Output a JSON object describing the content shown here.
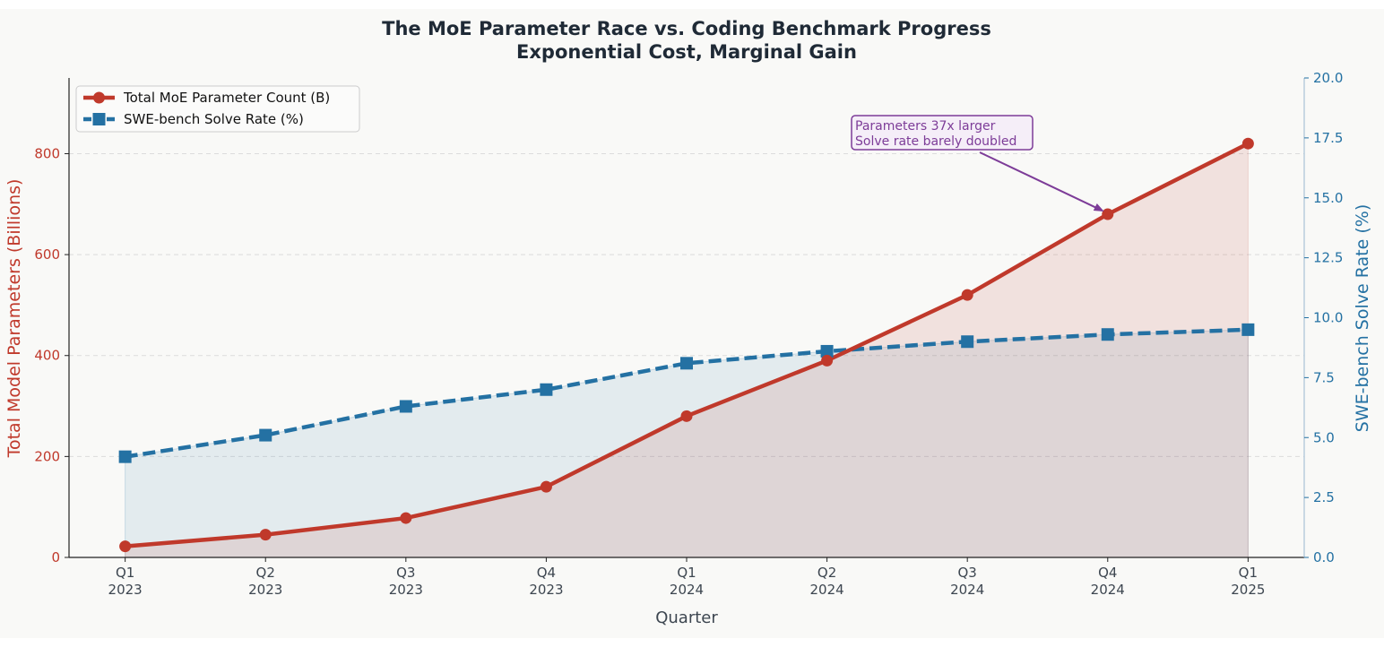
{
  "chart_data": {
    "type": "line",
    "title": "The MoE Parameter Race vs. Coding Benchmark Progress",
    "subtitle": "Exponential Cost, Marginal Gain",
    "xlabel": "Quarter",
    "categories": [
      "Q1\n2023",
      "Q2\n2023",
      "Q3\n2023",
      "Q4\n2023",
      "Q1\n2024",
      "Q2\n2024",
      "Q3\n2024",
      "Q4\n2024",
      "Q1\n2025"
    ],
    "series": [
      {
        "name": "Total MoE Parameter Count (B)",
        "axis": "left",
        "marker": "circle",
        "linestyle": "solid",
        "color": "#c0392b",
        "values": [
          22,
          45,
          78,
          140,
          280,
          390,
          520,
          680,
          820
        ]
      },
      {
        "name": "SWE-bench Solve Rate (%)",
        "axis": "right",
        "marker": "square",
        "linestyle": "dashed",
        "color": "#2471a3",
        "values": [
          4.2,
          5.1,
          6.3,
          7.0,
          8.1,
          8.6,
          9.0,
          9.3,
          9.5
        ]
      }
    ],
    "y_left": {
      "label": "Total Model Parameters (Billions)",
      "lim": [
        0,
        950
      ],
      "ticks": [
        0,
        200,
        400,
        600,
        800
      ],
      "color": "#c0392b"
    },
    "y_right": {
      "label": "SWE-bench Solve Rate (%)",
      "lim": [
        0,
        20
      ],
      "ticks": [
        "0.0",
        "2.5",
        "5.0",
        "7.5",
        "10.0",
        "12.5",
        "15.0",
        "17.5",
        "20.0"
      ],
      "color": "#2471a3"
    },
    "grid": true,
    "legend": "top-left",
    "annotation": {
      "lines": [
        "Parameters 37x larger",
        "Solve rate barely doubled"
      ],
      "target_index": 7,
      "color": "#7d3c98"
    }
  }
}
